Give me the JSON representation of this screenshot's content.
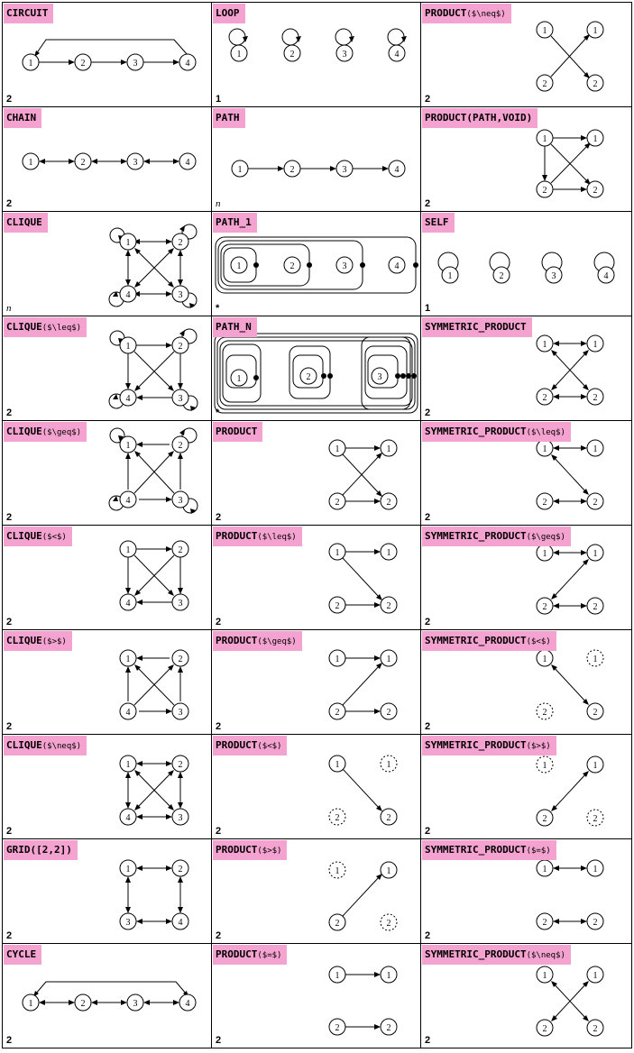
{
  "cells": [
    {
      "title": "CIRCUIT",
      "arg": "",
      "value": "2"
    },
    {
      "title": "LOOP",
      "arg": "",
      "value": "1"
    },
    {
      "title": "PRODUCT",
      "arg": "($\\neq$)",
      "value": "2"
    },
    {
      "title": "CHAIN",
      "arg": "",
      "value": "2"
    },
    {
      "title": "PATH",
      "arg": "",
      "value": "n"
    },
    {
      "title": "PRODUCT(PATH,VOID)",
      "arg": "",
      "value": "2"
    },
    {
      "title": "CLIQUE",
      "arg": "",
      "value": "n"
    },
    {
      "title": "PATH_1",
      "arg": "",
      "value": "*"
    },
    {
      "title": "SELF",
      "arg": "",
      "value": "1"
    },
    {
      "title": "CLIQUE",
      "arg": "($\\leq$)",
      "value": "2"
    },
    {
      "title": "PATH_N",
      "arg": "",
      "value": "*"
    },
    {
      "title": "SYMMETRIC_PRODUCT",
      "arg": "",
      "value": "2"
    },
    {
      "title": "CLIQUE",
      "arg": "($\\geq$)",
      "value": "2"
    },
    {
      "title": "PRODUCT",
      "arg": "",
      "value": "2"
    },
    {
      "title": "SYMMETRIC_PRODUCT",
      "arg": "($\\leq$)",
      "value": "2"
    },
    {
      "title": "CLIQUE",
      "arg": "($<$)",
      "value": "2"
    },
    {
      "title": "PRODUCT",
      "arg": "($\\leq$)",
      "value": "2"
    },
    {
      "title": "SYMMETRIC_PRODUCT",
      "arg": "($\\geq$)",
      "value": "2"
    },
    {
      "title": "CLIQUE",
      "arg": "($>$)",
      "value": "2"
    },
    {
      "title": "PRODUCT",
      "arg": "($\\geq$)",
      "value": "2"
    },
    {
      "title": "SYMMETRIC_PRODUCT",
      "arg": "($<$)",
      "value": "2"
    },
    {
      "title": "CLIQUE",
      "arg": "($\\neq$)",
      "value": "2"
    },
    {
      "title": "PRODUCT",
      "arg": "($<$)",
      "value": "2"
    },
    {
      "title": "SYMMETRIC_PRODUCT",
      "arg": "($>$)",
      "value": "2"
    },
    {
      "title": "GRID([2,2])",
      "arg": "",
      "value": "2"
    },
    {
      "title": "PRODUCT",
      "arg": "($>$)",
      "value": "2"
    },
    {
      "title": "SYMMETRIC_PRODUCT",
      "arg": "($=$)",
      "value": "2"
    },
    {
      "title": "CYCLE",
      "arg": "",
      "value": "2"
    },
    {
      "title": "PRODUCT",
      "arg": "($=$)",
      "value": "2"
    },
    {
      "title": "SYMMETRIC_PRODUCT",
      "arg": "($\\neq$)",
      "value": "2"
    }
  ],
  "node_labels": [
    "1",
    "2",
    "3",
    "4"
  ]
}
